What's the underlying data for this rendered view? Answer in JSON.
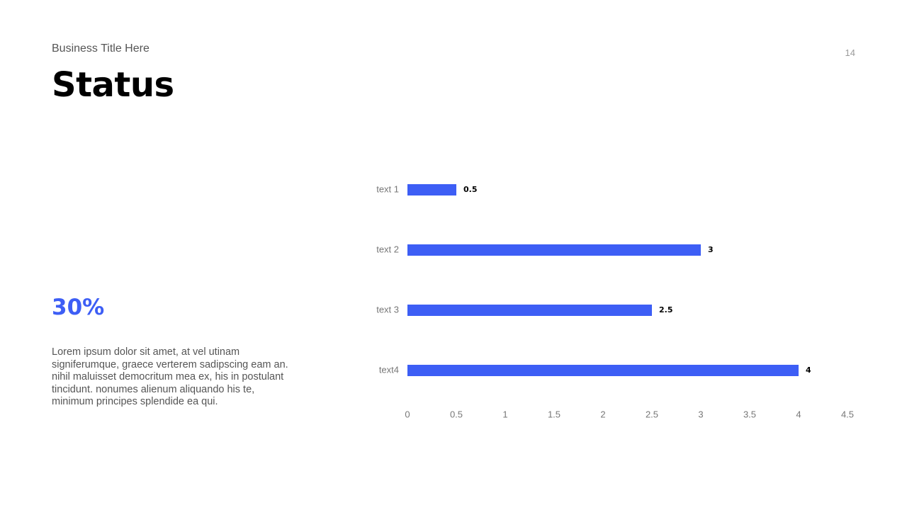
{
  "header": {
    "subtitle": "Business Title Here",
    "title": "Status",
    "page_number": "14"
  },
  "highlight": {
    "value": "30%",
    "color": "#3d5ef5"
  },
  "body": {
    "text": "Lorem ipsum dolor sit amet, at vel utinam signiferumque, graece verterem sadipscing eam an. nihil maluisset democritum mea ex, his in postulant tincidunt. nonumes alienum aliquando his te, minimum principes splendide ea qui."
  },
  "chart_data": {
    "type": "bar",
    "orientation": "horizontal",
    "categories": [
      "text 1",
      "text 2",
      "text 3",
      "text4"
    ],
    "values": [
      0.5,
      3,
      2.5,
      4
    ],
    "data_labels": [
      "0.5",
      "3",
      "2.5",
      "4"
    ],
    "xlim": [
      0,
      4.5
    ],
    "x_ticks": [
      "0",
      "0.5",
      "1",
      "1.5",
      "2",
      "2.5",
      "3",
      "3.5",
      "4",
      "4.5"
    ],
    "grid": false,
    "legend": "none",
    "bar_color": "#3d5ef5"
  }
}
